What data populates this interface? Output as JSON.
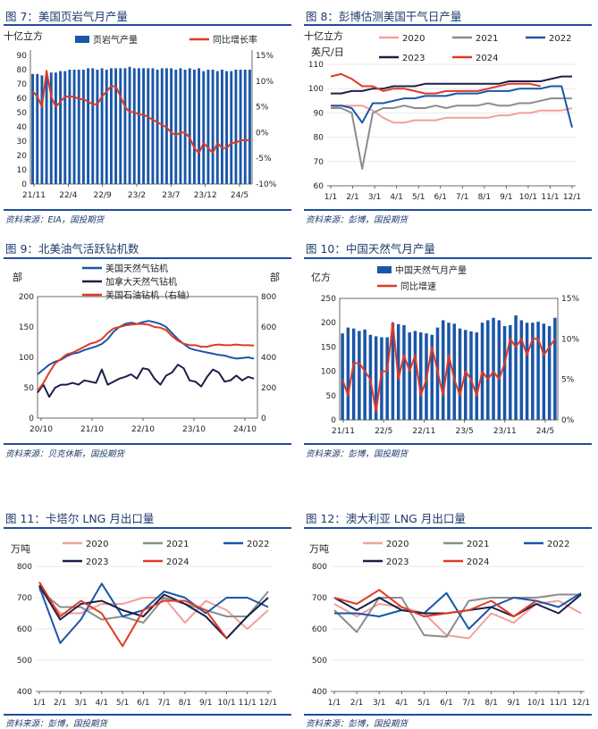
{
  "panels": [
    {
      "title": "图 7：美国页岩气月产量",
      "source": "资料来源：EIA，国投期货"
    },
    {
      "title": "图 8：彭博估测美国干气日产量",
      "source": "资料来源：彭博，国投期货"
    },
    {
      "title": "图 9：北美油气活跃钻机数",
      "source": "资料来源：贝克休斯，国投期货"
    },
    {
      "title": "图 10：中国天然气月产量",
      "source": "资料来源：彭博，国投期货"
    },
    {
      "title": "图 11：卡塔尔 LNG 月出口量",
      "source": "资料来源：彭博，国投期货"
    },
    {
      "title": "图 12：澳大利亚 LNG 月出口量",
      "source": "资料来源：彭博，国投期货"
    }
  ],
  "chart_data": [
    {
      "type": "bar+line",
      "unit_label": "十亿立方",
      "ylim": [
        0,
        90
      ],
      "yticks": [
        0,
        10,
        20,
        30,
        40,
        50,
        60,
        70,
        80,
        90
      ],
      "y2lim": [
        -10,
        15
      ],
      "y2ticks": [
        "15%",
        "10%",
        "5%",
        "0%",
        "-5%",
        "-10%"
      ],
      "xticks": [
        "21/11",
        "22/4",
        "22/9",
        "23/2",
        "23/7",
        "23/12",
        "24/5"
      ],
      "series": [
        {
          "name": "页岩气产量",
          "type": "bar",
          "color": "#1a56a8",
          "values": [
            77,
            77,
            76,
            77,
            78,
            78,
            79,
            79,
            80,
            80,
            80,
            80,
            81,
            81,
            80,
            81,
            80,
            81,
            81,
            81,
            81,
            82,
            81,
            81,
            81,
            81,
            81,
            80,
            81,
            81,
            81,
            80,
            81,
            80,
            81,
            80,
            81,
            79,
            80,
            80,
            79,
            80,
            79,
            79,
            80,
            80,
            80,
            80
          ]
        },
        {
          "name": "同比增长率",
          "type": "line",
          "color": "#e03a24",
          "values": [
            8,
            7,
            5,
            12,
            7,
            5,
            6,
            7,
            7,
            7,
            6.5,
            6.5,
            6,
            5.5,
            5.5,
            7,
            8,
            9,
            9,
            7,
            5,
            4,
            4,
            3.5,
            3.5,
            3,
            2.5,
            2,
            1.5,
            1,
            0,
            -0.5,
            0,
            0,
            -1,
            -3,
            -4,
            -2,
            -3,
            -4,
            -2,
            -3,
            -3,
            -2,
            -2,
            -1.5,
            -1.5,
            -1.5
          ]
        }
      ]
    },
    {
      "type": "line",
      "unit_label": "十亿立方英尺/日",
      "ylim": [
        60,
        110
      ],
      "yticks": [
        60,
        70,
        80,
        90,
        100,
        110
      ],
      "xticks": [
        "1/1",
        "2/1",
        "3/1",
        "4/1",
        "5/1",
        "6/1",
        "7/1",
        "8/1",
        "9/1",
        "10/1",
        "11/1",
        "12/1"
      ],
      "series": [
        {
          "name": "2020",
          "color": "#f2a09a",
          "values": [
            92,
            93,
            93,
            93,
            91,
            88,
            86,
            86,
            87,
            87,
            87,
            88,
            88,
            88,
            88,
            88,
            89,
            89,
            90,
            90,
            91,
            91,
            91,
            92
          ]
        },
        {
          "name": "2021",
          "color": "#8c8c8c",
          "values": [
            92,
            92,
            90,
            67,
            90,
            92,
            92,
            93,
            92,
            92,
            93,
            92,
            93,
            93,
            93,
            94,
            93,
            93,
            94,
            94,
            95,
            96,
            96,
            96
          ]
        },
        {
          "name": "2022",
          "color": "#1a56a8",
          "values": [
            93,
            93,
            92,
            86,
            94,
            94,
            95,
            96,
            96,
            97,
            97,
            97,
            98,
            98,
            98,
            99,
            99,
            99,
            100,
            100,
            100,
            101,
            101,
            84
          ]
        },
        {
          "name": "2023",
          "color": "#1c1f4a",
          "values": [
            98,
            98,
            99,
            99,
            100,
            100,
            101,
            101,
            101,
            102,
            102,
            102,
            102,
            102,
            102,
            102,
            102,
            103,
            103,
            103,
            103,
            104,
            105,
            105
          ]
        },
        {
          "name": "2024",
          "color": "#e03a24",
          "values": [
            105,
            106,
            104,
            101,
            101,
            99,
            100,
            100,
            99,
            98,
            98,
            99,
            99,
            99,
            99,
            100,
            101,
            102,
            102,
            102,
            101
          ]
        }
      ]
    },
    {
      "type": "line",
      "unit_left": "部",
      "unit_right": "部",
      "ylim": [
        0,
        200
      ],
      "yticks": [
        0,
        50,
        100,
        150,
        200
      ],
      "y2lim": [
        0,
        800
      ],
      "y2ticks": [
        0,
        200,
        400,
        600,
        800
      ],
      "xticks": [
        "20/10",
        "21/10",
        "22/10",
        "23/10",
        "24/10"
      ],
      "series": [
        {
          "name": "美国天然气钻机",
          "color": "#1a56a8",
          "values": [
            72,
            80,
            88,
            93,
            96,
            102,
            106,
            108,
            112,
            115,
            118,
            122,
            130,
            142,
            150,
            155,
            157,
            155,
            158,
            160,
            158,
            155,
            150,
            140,
            130,
            122,
            115,
            112,
            110,
            108,
            106,
            104,
            103,
            100,
            98,
            99,
            100,
            98
          ]
        },
        {
          "name": "加拿大天然气钻机",
          "color": "#1c1f4a",
          "values": [
            42,
            55,
            35,
            50,
            55,
            55,
            58,
            55,
            62,
            60,
            58,
            80,
            55,
            60,
            65,
            68,
            72,
            65,
            82,
            80,
            65,
            55,
            70,
            75,
            88,
            82,
            62,
            60,
            52,
            68,
            80,
            75,
            60,
            62,
            70,
            62,
            68,
            65
          ]
        },
        {
          "name": "美国石油钻机（右轴）",
          "axis": "right",
          "color": "#e03a24",
          "values": [
            180,
            230,
            300,
            360,
            390,
            420,
            430,
            450,
            470,
            490,
            500,
            520,
            560,
            590,
            600,
            610,
            615,
            620,
            620,
            615,
            600,
            595,
            580,
            540,
            510,
            490,
            480,
            480,
            470,
            470,
            480,
            485,
            480,
            480,
            485,
            480,
            480,
            478
          ]
        }
      ]
    },
    {
      "type": "bar+line",
      "unit_label": "亿方",
      "ylim": [
        0,
        250
      ],
      "yticks": [
        0,
        50,
        100,
        150,
        200,
        250
      ],
      "y2lim": [
        0,
        15
      ],
      "y2ticks": [
        "15%",
        "10%",
        "5%",
        "0%"
      ],
      "xticks": [
        "21/11",
        "22/5",
        "22/11",
        "23/5",
        "23/11",
        "24/5"
      ],
      "series": [
        {
          "name": "中国天然气月产量",
          "type": "bar",
          "color": "#1a56a8",
          "values": [
            178,
            190,
            188,
            183,
            186,
            175,
            172,
            170,
            170,
            200,
            197,
            195,
            180,
            183,
            180,
            178,
            175,
            190,
            205,
            200,
            198,
            188,
            185,
            182,
            180,
            200,
            205,
            210,
            205,
            193,
            195,
            215,
            205,
            200,
            200,
            202,
            198,
            193,
            210
          ]
        },
        {
          "name": "同比增速",
          "type": "line",
          "color": "#e03a24",
          "values": [
            5,
            3,
            7,
            7,
            6,
            5,
            1,
            6,
            6,
            12,
            5,
            8,
            6,
            8,
            3,
            5,
            9,
            6,
            3,
            8,
            5,
            3,
            6,
            5,
            3,
            6,
            5,
            6,
            5,
            7,
            10,
            9,
            10,
            8,
            10,
            10,
            8,
            9,
            10
          ]
        }
      ]
    },
    {
      "type": "line",
      "unit_label": "万吨",
      "ylim": [
        400,
        800
      ],
      "yticks": [
        400,
        500,
        600,
        700,
        800
      ],
      "xticks": [
        "1/1",
        "2/1",
        "3/1",
        "4/1",
        "5/1",
        "6/1",
        "7/1",
        "8/1",
        "9/1",
        "10/1",
        "11/1",
        "12/1"
      ],
      "series": [
        {
          "name": "2020",
          "color": "#f2a09a",
          "values": [
            730,
            650,
            650,
            680,
            680,
            700,
            700,
            620,
            690,
            660,
            600,
            660
          ]
        },
        {
          "name": "2021",
          "color": "#8c8c8c",
          "values": [
            725,
            670,
            670,
            630,
            640,
            620,
            700,
            680,
            660,
            640,
            640,
            720
          ]
        },
        {
          "name": "2022",
          "color": "#1a56a8",
          "values": [
            735,
            555,
            630,
            745,
            640,
            660,
            720,
            700,
            650,
            700,
            700,
            670
          ]
        },
        {
          "name": "2023",
          "color": "#1c1f4a",
          "values": [
            740,
            630,
            680,
            690,
            660,
            640,
            710,
            680,
            640,
            570,
            640,
            700
          ]
        },
        {
          "name": "2024",
          "color": "#e03a24",
          "values": [
            750,
            640,
            690,
            650,
            545,
            660,
            690,
            690,
            660,
            570
          ]
        }
      ]
    },
    {
      "type": "line",
      "unit_label": "万吨",
      "ylim": [
        400,
        800
      ],
      "yticks": [
        400,
        500,
        600,
        700,
        800
      ],
      "xticks": [
        "1/1",
        "2/1",
        "3/1",
        "4/1",
        "5/1",
        "6/1",
        "7/1",
        "8/1",
        "9/1",
        "10/1",
        "11/1",
        "12/1"
      ],
      "series": [
        {
          "name": "2020",
          "color": "#f2a09a",
          "values": [
            680,
            640,
            680,
            670,
            650,
            580,
            570,
            650,
            620,
            680,
            690,
            650
          ]
        },
        {
          "name": "2021",
          "color": "#8c8c8c",
          "values": [
            660,
            590,
            700,
            700,
            580,
            575,
            690,
            700,
            700,
            700,
            710,
            710
          ]
        },
        {
          "name": "2022",
          "color": "#1a56a8",
          "values": [
            650,
            650,
            640,
            660,
            650,
            715,
            600,
            670,
            700,
            690,
            670,
            715
          ]
        },
        {
          "name": "2023",
          "color": "#1c1f4a",
          "values": [
            700,
            660,
            700,
            660,
            650,
            650,
            660,
            670,
            640,
            680,
            650,
            710
          ]
        },
        {
          "name": "2024",
          "color": "#e03a24",
          "values": [
            700,
            680,
            725,
            670,
            640,
            650,
            660,
            690,
            640,
            690
          ]
        }
      ]
    }
  ]
}
